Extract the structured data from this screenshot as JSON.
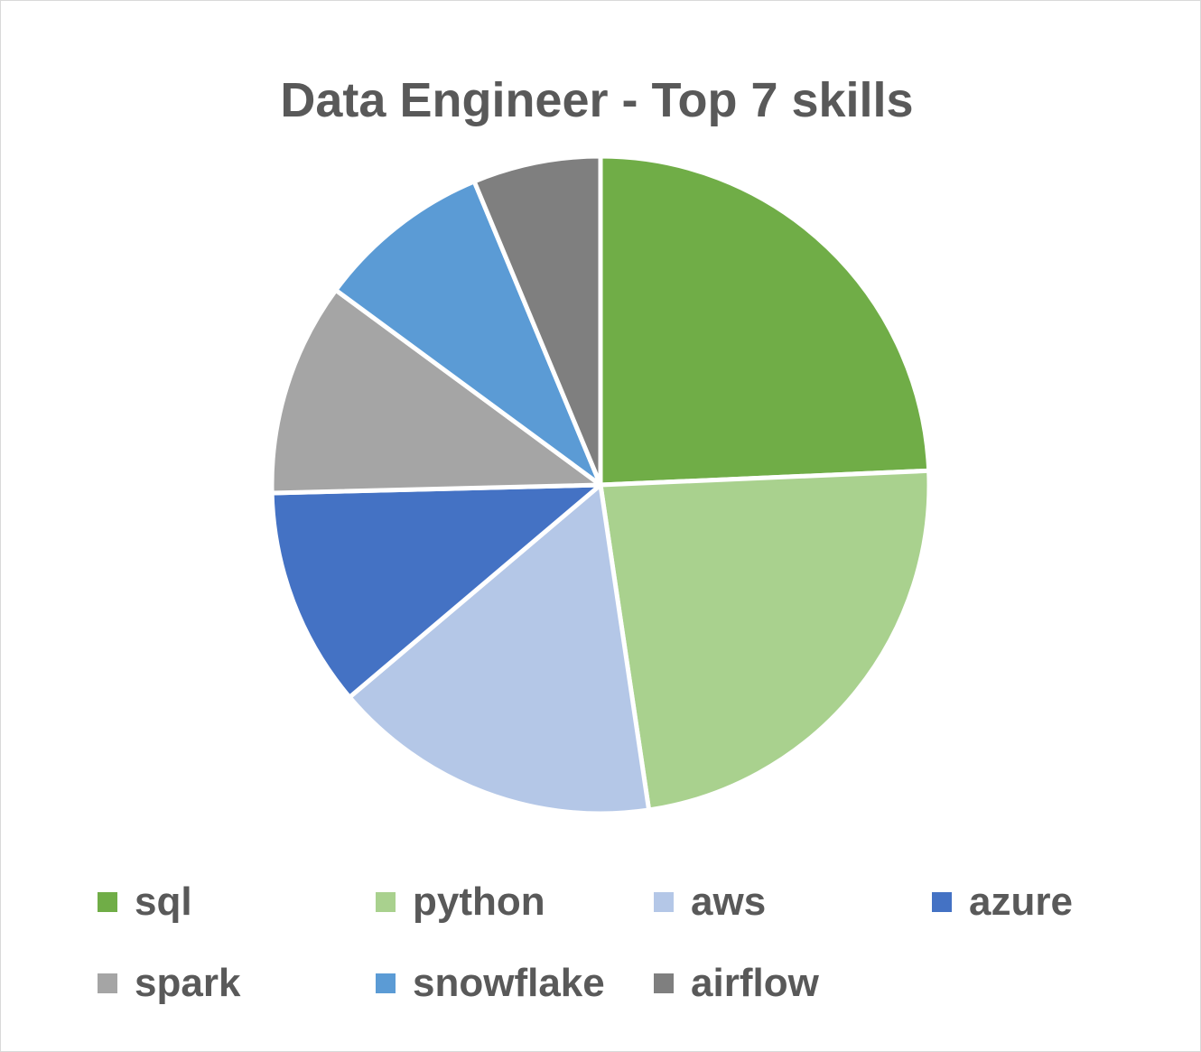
{
  "chart_data": {
    "type": "pie",
    "title": "Data Engineer - Top 7 skills",
    "categories": [
      "sql",
      "python",
      "aws",
      "azure",
      "spark",
      "snowflake",
      "airflow"
    ],
    "values": [
      24.8,
      23.8,
      16.5,
      11.0,
      10.7,
      8.8,
      6.4
    ],
    "colors": [
      "#70ad47",
      "#a9d18e",
      "#b4c7e7",
      "#4472c4",
      "#a5a5a5",
      "#5b9bd5",
      "#7f7f7f"
    ],
    "start_angle": "12 o'clock",
    "direction": "clockwise",
    "legend_position": "bottom"
  }
}
